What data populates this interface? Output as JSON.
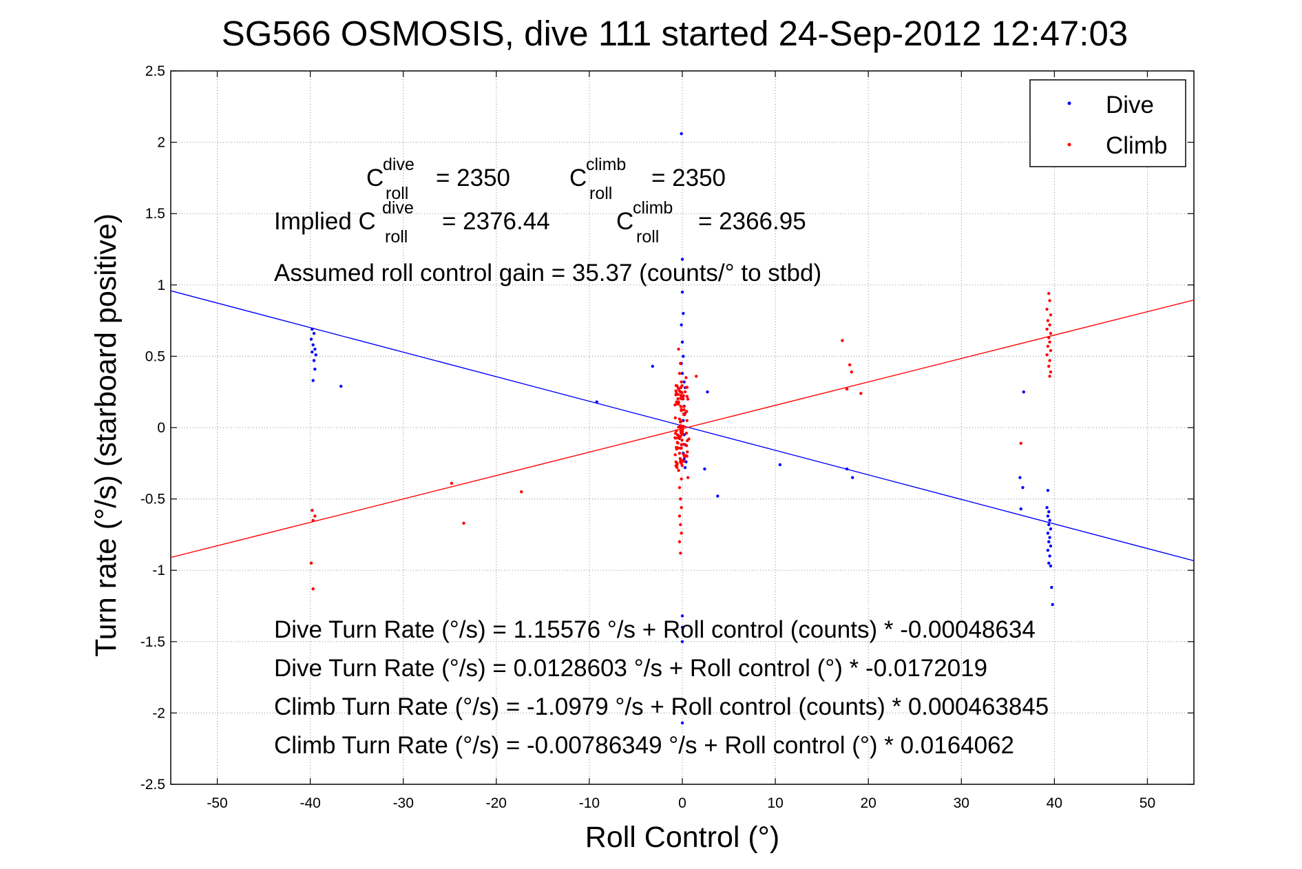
{
  "chart_data": {
    "type": "scatter",
    "title": "SG566 OSMOSIS, dive 111 started 24-Sep-2012 12:47:03",
    "xlabel": "Roll Control (°)",
    "ylabel": "Turn rate (°/s)  (starboard positive)",
    "xlim": [
      -55,
      55
    ],
    "ylim": [
      -2.5,
      2.5
    ],
    "grid": true,
    "legend_position": "top-right",
    "x_ticks": [
      -50,
      -40,
      -30,
      -20,
      -10,
      0,
      10,
      20,
      30,
      40,
      50
    ],
    "x_tick_labels": [
      "-50",
      "-40",
      "-30",
      "-20",
      "-10",
      "0",
      "10",
      "20",
      "30",
      "40",
      "50"
    ],
    "y_ticks": [
      2.5,
      2,
      1.5,
      1,
      0.5,
      0,
      -0.5,
      -1,
      -1.5,
      -2,
      -2.5
    ],
    "y_tick_labels": [
      "2.5",
      "2",
      "1.5",
      "1",
      "0.5",
      "0",
      "-0.5",
      "-1",
      "-1.5",
      "-2",
      "-2.5"
    ],
    "series": [
      {
        "name": "Dive",
        "color": "#0000ff",
        "marker": "dot",
        "points": [
          [
            -39.8,
            0.69
          ],
          [
            -39.6,
            0.66
          ],
          [
            -39.9,
            0.62
          ],
          [
            -39.7,
            0.58
          ],
          [
            -39.5,
            0.55
          ],
          [
            -39.8,
            0.53
          ],
          [
            -39.4,
            0.51
          ],
          [
            -39.6,
            0.47
          ],
          [
            -39.5,
            0.41
          ],
          [
            -39.7,
            0.33
          ],
          [
            -36.7,
            0.29
          ],
          [
            -9.2,
            0.18
          ],
          [
            -3.2,
            0.43
          ],
          [
            -0.1,
            2.06
          ],
          [
            0.0,
            1.18
          ],
          [
            0.0,
            0.95
          ],
          [
            0.1,
            0.8
          ],
          [
            -0.1,
            0.72
          ],
          [
            0.0,
            0.6
          ],
          [
            0.1,
            0.5
          ],
          [
            -0.1,
            0.45
          ],
          [
            0.0,
            0.38
          ],
          [
            0.2,
            0.32
          ],
          [
            0.3,
            0.28
          ],
          [
            0.1,
            0.22
          ],
          [
            0.2,
            0.15
          ],
          [
            0.3,
            0.1
          ],
          [
            0.1,
            0.05
          ],
          [
            0.2,
            -0.05
          ],
          [
            0.3,
            -0.12
          ],
          [
            0.1,
            -0.18
          ],
          [
            0.2,
            -0.22
          ],
          [
            0.3,
            -0.28
          ],
          [
            0.4,
            -0.24
          ],
          [
            2.7,
            0.25
          ],
          [
            2.4,
            -0.29
          ],
          [
            3.8,
            -0.48
          ],
          [
            10.5,
            -0.26
          ],
          [
            17.7,
            -0.29
          ],
          [
            18.3,
            -0.35
          ],
          [
            0.0,
            -1.32
          ],
          [
            0.0,
            -1.4
          ],
          [
            0.0,
            -1.5
          ],
          [
            0.0,
            -2.07
          ],
          [
            36.7,
            0.25
          ],
          [
            36.3,
            -0.35
          ],
          [
            36.6,
            -0.42
          ],
          [
            36.4,
            -0.57
          ],
          [
            39.3,
            -0.44
          ],
          [
            39.2,
            -0.56
          ],
          [
            39.4,
            -0.59
          ],
          [
            39.3,
            -0.62
          ],
          [
            39.5,
            -0.65
          ],
          [
            39.4,
            -0.68
          ],
          [
            39.6,
            -0.71
          ],
          [
            39.3,
            -0.74
          ],
          [
            39.5,
            -0.77
          ],
          [
            39.4,
            -0.8
          ],
          [
            39.6,
            -0.83
          ],
          [
            39.3,
            -0.86
          ],
          [
            39.5,
            -0.9
          ],
          [
            39.4,
            -0.95
          ],
          [
            39.6,
            -0.97
          ],
          [
            39.7,
            -1.12
          ],
          [
            39.8,
            -1.24
          ]
        ]
      },
      {
        "name": "Climb",
        "color": "#ff0000",
        "marker": "dot",
        "points": [
          [
            -39.8,
            -0.58
          ],
          [
            -39.5,
            -0.62
          ],
          [
            -39.7,
            -0.65
          ],
          [
            -39.9,
            -0.95
          ],
          [
            -39.7,
            -1.13
          ],
          [
            -24.8,
            -0.39
          ],
          [
            -23.5,
            -0.67
          ],
          [
            -17.3,
            -0.45
          ],
          [
            -0.4,
            0.55
          ],
          [
            -0.2,
            0.45
          ],
          [
            -0.3,
            0.38
          ],
          [
            -0.1,
            0.32
          ],
          [
            -0.2,
            0.25
          ],
          [
            -0.4,
            0.18
          ],
          [
            -0.1,
            0.12
          ],
          [
            -0.3,
            0.06
          ],
          [
            -0.2,
            0.0
          ],
          [
            -0.4,
            -0.06
          ],
          [
            -0.1,
            -0.12
          ],
          [
            -0.3,
            -0.18
          ],
          [
            -0.2,
            -0.24
          ],
          [
            -0.4,
            -0.3
          ],
          [
            -0.1,
            -0.36
          ],
          [
            -0.3,
            -0.42
          ],
          [
            -0.2,
            -0.5
          ],
          [
            -0.1,
            -0.56
          ],
          [
            -0.3,
            -0.62
          ],
          [
            -0.2,
            -0.68
          ],
          [
            -0.1,
            -0.74
          ],
          [
            -0.3,
            -0.8
          ],
          [
            -0.2,
            -0.88
          ],
          [
            0.4,
            0.35
          ],
          [
            0.6,
            0.2
          ],
          [
            0.5,
            0.05
          ],
          [
            0.7,
            -0.08
          ],
          [
            0.5,
            -0.2
          ],
          [
            0.6,
            -0.35
          ],
          [
            1.5,
            0.36
          ],
          [
            17.2,
            0.61
          ],
          [
            18.0,
            0.44
          ],
          [
            18.2,
            0.39
          ],
          [
            17.7,
            0.27
          ],
          [
            19.2,
            0.24
          ],
          [
            36.4,
            -0.11
          ],
          [
            39.4,
            0.94
          ],
          [
            39.5,
            0.89
          ],
          [
            39.2,
            0.83
          ],
          [
            39.6,
            0.79
          ],
          [
            39.3,
            0.75
          ],
          [
            39.5,
            0.72
          ],
          [
            39.2,
            0.69
          ],
          [
            39.6,
            0.66
          ],
          [
            39.4,
            0.63
          ],
          [
            39.5,
            0.6
          ],
          [
            39.3,
            0.57
          ],
          [
            39.6,
            0.54
          ],
          [
            39.2,
            0.51
          ],
          [
            39.5,
            0.47
          ],
          [
            39.4,
            0.43
          ],
          [
            39.6,
            0.39
          ],
          [
            39.5,
            0.36
          ]
        ],
        "dense_cluster": {
          "x_range": [
            -0.8,
            0.6
          ],
          "y_range": [
            -0.28,
            0.3
          ]
        }
      }
    ],
    "fit_lines": [
      {
        "series": "Dive",
        "color": "#0000ff",
        "intercept": 0.0128603,
        "slope": -0.0172019
      },
      {
        "series": "Climb",
        "color": "#ff0000",
        "intercept": -0.00786349,
        "slope": 0.0164062
      }
    ],
    "annotations": {
      "c_roll_dive": {
        "base": "C",
        "sup": "dive",
        "sub": "roll",
        "value": "= 2350"
      },
      "c_roll_climb": {
        "base": "C",
        "sup": "climb",
        "sub": "roll",
        "value": "= 2350"
      },
      "implied_prefix": "Implied C",
      "implied_dive": {
        "sup": "dive",
        "sub": "roll",
        "value": "= 2376.44"
      },
      "implied_climb": {
        "base": "C",
        "sup": "climb",
        "sub": "roll",
        "value": "= 2366.95"
      },
      "gain": "Assumed roll control gain = 35.37 (counts/° to stbd)",
      "eq1": "Dive Turn Rate (°/s) = 1.15576 °/s + Roll control (counts) * -0.00048634",
      "eq2": "Dive Turn Rate (°/s) = 0.0128603 °/s + Roll control (°) * -0.0172019",
      "eq3": "Climb Turn Rate (°/s) = -1.0979 °/s + Roll control (counts) * 0.000463845",
      "eq4": "Climb Turn Rate (°/s) = -0.00786349 °/s + Roll control (°) * 0.0164062"
    },
    "legend": [
      {
        "label": "Dive",
        "color": "#0000ff"
      },
      {
        "label": "Climb",
        "color": "#ff0000"
      }
    ]
  }
}
